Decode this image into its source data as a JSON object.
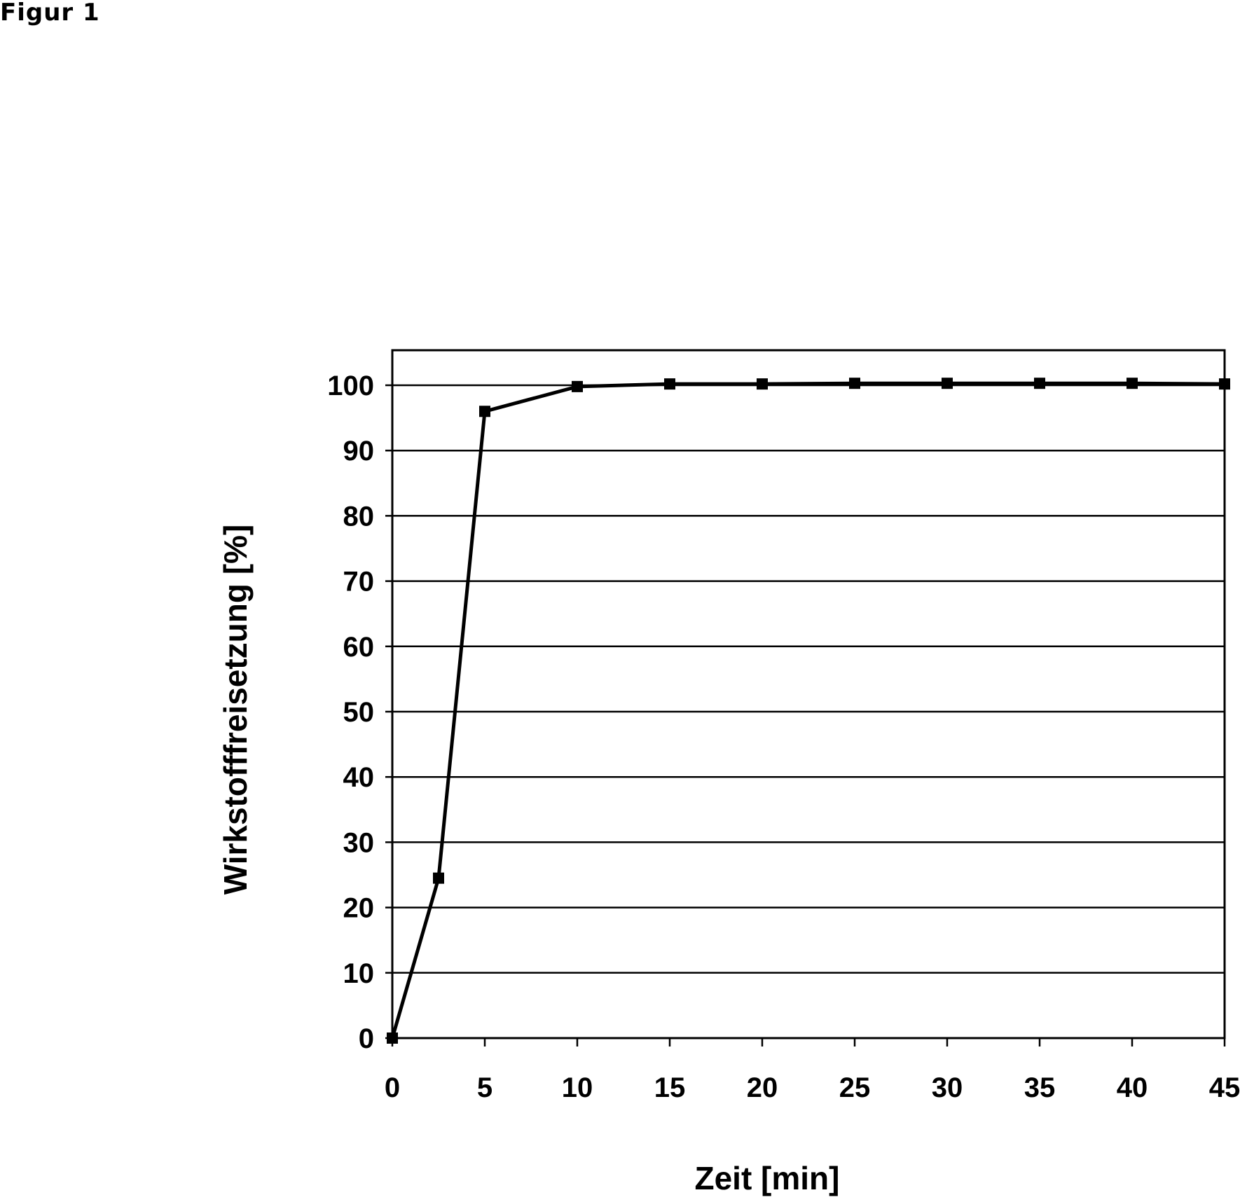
{
  "figure_label": "Figur 1",
  "chart_data": {
    "type": "line",
    "title": "",
    "xlabel": "Zeit [min]",
    "ylabel": "Wirkstofffreisetzung [%]",
    "xlim": [
      0,
      45
    ],
    "ylim": [
      0,
      100
    ],
    "xticks": [
      "0",
      "5",
      "10",
      "15",
      "20",
      "25",
      "30",
      "35",
      "40",
      "45"
    ],
    "yticks": [
      "0",
      "10",
      "20",
      "30",
      "40",
      "50",
      "60",
      "70",
      "80",
      "90",
      "100"
    ],
    "grid": "horizontal",
    "legend": "none",
    "series": [
      {
        "x": [
          0,
          2.5,
          5,
          10,
          15,
          20,
          25,
          30,
          35,
          40,
          45
        ],
        "y": [
          0,
          24.5,
          96,
          99.8,
          100.2,
          100.2,
          100.3,
          100.3,
          100.3,
          100.3,
          100.2
        ],
        "marker": "square",
        "color": "#000000"
      }
    ]
  }
}
